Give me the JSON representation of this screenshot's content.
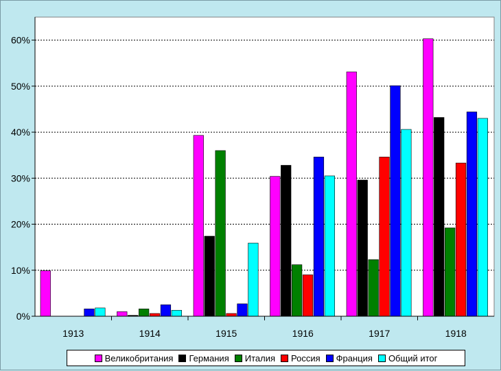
{
  "chart_data": {
    "type": "bar",
    "categories": [
      "1913",
      "1914",
      "1915",
      "1916",
      "1917",
      "1918"
    ],
    "ylim": [
      0,
      0.65
    ],
    "yticks": [
      0,
      0.1,
      0.2,
      0.3,
      0.4,
      0.5,
      0.6
    ],
    "ytick_labels": [
      "0%",
      "10%",
      "20%",
      "30%",
      "40%",
      "50%",
      "60%"
    ],
    "grid": true,
    "legend_position": "bottom",
    "series": [
      {
        "name": "Великобритания",
        "color": "#ff00ff",
        "values": [
          0.099,
          0.01,
          0.393,
          0.304,
          0.531,
          0.603
        ]
      },
      {
        "name": "Германия",
        "color": "#000000",
        "values": [
          0.0,
          0.002,
          0.174,
          0.328,
          0.296,
          0.432
        ]
      },
      {
        "name": "Италия",
        "color": "#008000",
        "values": [
          0.0,
          0.016,
          0.36,
          0.112,
          0.123,
          0.192
        ]
      },
      {
        "name": "Россия",
        "color": "#ff0000",
        "values": [
          0.0,
          0.006,
          0.006,
          0.09,
          0.346,
          0.333
        ]
      },
      {
        "name": "Франция",
        "color": "#0000ff",
        "values": [
          0.016,
          0.025,
          0.027,
          0.346,
          0.501,
          0.444
        ]
      },
      {
        "name": "Общий итог",
        "color": "#00ffff",
        "values": [
          0.018,
          0.013,
          0.159,
          0.305,
          0.406,
          0.43
        ]
      }
    ]
  }
}
